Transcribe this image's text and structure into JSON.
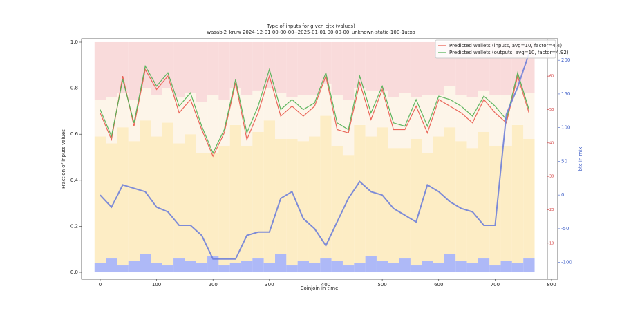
{
  "chart_data": {
    "type": "line",
    "title": "Type of inputs for given cjtx (values)",
    "subtitle": "wasabi2_kruw 2024-12-01 00-00-00--2025-01-01 00-00-00_unknown-static-100-1utxo",
    "x_label": "Coinjoin in time",
    "y_label": "Fraction of inputs values",
    "y2_label": "btc in mix",
    "x": [
      0,
      20,
      40,
      60,
      80,
      100,
      120,
      140,
      160,
      180,
      200,
      220,
      240,
      260,
      280,
      300,
      320,
      340,
      360,
      380,
      400,
      420,
      440,
      460,
      480,
      500,
      520,
      540,
      560,
      580,
      600,
      620,
      640,
      660,
      680,
      700,
      720,
      740,
      760
    ],
    "xlim": [
      -33,
      811
    ],
    "xticks": [
      0,
      100,
      200,
      300,
      400,
      500,
      600,
      700,
      800
    ],
    "ylim": [
      -0.03,
      1.015
    ],
    "yticks": [
      {
        "value": 0,
        "label": "0.0"
      },
      0.2,
      0.4,
      0.6,
      0.8,
      {
        "value": 1,
        "label": "1.0"
      }
    ],
    "y2lim": [
      -125,
      232
    ],
    "y2ticks": [
      -100,
      -50,
      0,
      50,
      100,
      150,
      200
    ],
    "y3lim": [
      -0.8,
      71.2
    ],
    "y3ticks": [
      10,
      20,
      30,
      40,
      50,
      60
    ],
    "legend": "upper right",
    "series": [
      {
        "name": "Predicted wallets (inputs, avg=10, factor=4.4)",
        "color": "#e8584a",
        "axis": "y3",
        "values": [
          49,
          41,
          60,
          45,
          62,
          56,
          60,
          49,
          53,
          44,
          36,
          43,
          58,
          41,
          49,
          60,
          48,
          51,
          48,
          51,
          60,
          44,
          43,
          58,
          47,
          56,
          44,
          44,
          51,
          43,
          53,
          51,
          49,
          46,
          53,
          49,
          46,
          60,
          49
        ]
      },
      {
        "name": "Predicted wallets (outputs, avg=10, factor=4.92)",
        "color": "#4caf50",
        "axis": "y3",
        "values": [
          50,
          42,
          59,
          46,
          63,
          57,
          61,
          51,
          55,
          45,
          37,
          44,
          59,
          43,
          51,
          62,
          50,
          53,
          50,
          52,
          61,
          46,
          44,
          60,
          49,
          57,
          46,
          45,
          53,
          45,
          54,
          53,
          51,
          48,
          54,
          51,
          47,
          61,
          50
        ]
      },
      {
        "color": "#6f80d8",
        "axis": "y2",
        "values": [
          0,
          -18,
          15,
          10,
          5,
          -18,
          -25,
          -45,
          -45,
          -60,
          -95,
          -95,
          -95,
          -60,
          -55,
          -55,
          -5,
          5,
          -35,
          -50,
          -75,
          -40,
          -5,
          20,
          5,
          0,
          -20,
          -30,
          -40,
          15,
          5,
          -10,
          -20,
          -25,
          -45,
          -45,
          120,
          160,
          210
        ]
      }
    ],
    "stack_series": [
      {
        "color": "#9aa8f5",
        "values": [
          0.04,
          0.06,
          0.03,
          0.05,
          0.08,
          0.04,
          0.03,
          0.06,
          0.05,
          0.04,
          0.07,
          0.03,
          0.04,
          0.05,
          0.06,
          0.04,
          0.08,
          0.03,
          0.05,
          0.04,
          0.06,
          0.05,
          0.03,
          0.04,
          0.07,
          0.05,
          0.04,
          0.06,
          0.03,
          0.05,
          0.04,
          0.08,
          0.05,
          0.04,
          0.06,
          0.03,
          0.05,
          0.04,
          0.06
        ]
      },
      {
        "color": "#fde8b6",
        "values": [
          0.55,
          0.5,
          0.6,
          0.52,
          0.58,
          0.55,
          0.62,
          0.5,
          0.55,
          0.48,
          0.45,
          0.52,
          0.6,
          0.5,
          0.55,
          0.62,
          0.5,
          0.55,
          0.52,
          0.55,
          0.62,
          0.5,
          0.48,
          0.6,
          0.52,
          0.58,
          0.5,
          0.48,
          0.55,
          0.47,
          0.55,
          0.55,
          0.52,
          0.5,
          0.55,
          0.52,
          0.5,
          0.6,
          0.52
        ]
      },
      {
        "color": "#fdf3e4",
        "values": [
          0.16,
          0.2,
          0.15,
          0.18,
          0.14,
          0.18,
          0.15,
          0.2,
          0.18,
          0.22,
          0.25,
          0.2,
          0.16,
          0.22,
          0.18,
          0.14,
          0.2,
          0.18,
          0.2,
          0.18,
          0.14,
          0.22,
          0.24,
          0.16,
          0.2,
          0.16,
          0.22,
          0.24,
          0.18,
          0.25,
          0.18,
          0.18,
          0.2,
          0.22,
          0.18,
          0.22,
          0.22,
          0.16,
          0.2
        ]
      },
      {
        "color": "#f8d2d2",
        "values": [
          0.25,
          0.24,
          0.22,
          0.25,
          0.2,
          0.23,
          0.2,
          0.24,
          0.22,
          0.26,
          0.23,
          0.25,
          0.2,
          0.23,
          0.21,
          0.2,
          0.22,
          0.24,
          0.23,
          0.23,
          0.18,
          0.23,
          0.25,
          0.2,
          0.21,
          0.21,
          0.24,
          0.22,
          0.24,
          0.23,
          0.23,
          0.19,
          0.23,
          0.24,
          0.21,
          0.23,
          0.23,
          0.2,
          0.22
        ]
      }
    ]
  }
}
